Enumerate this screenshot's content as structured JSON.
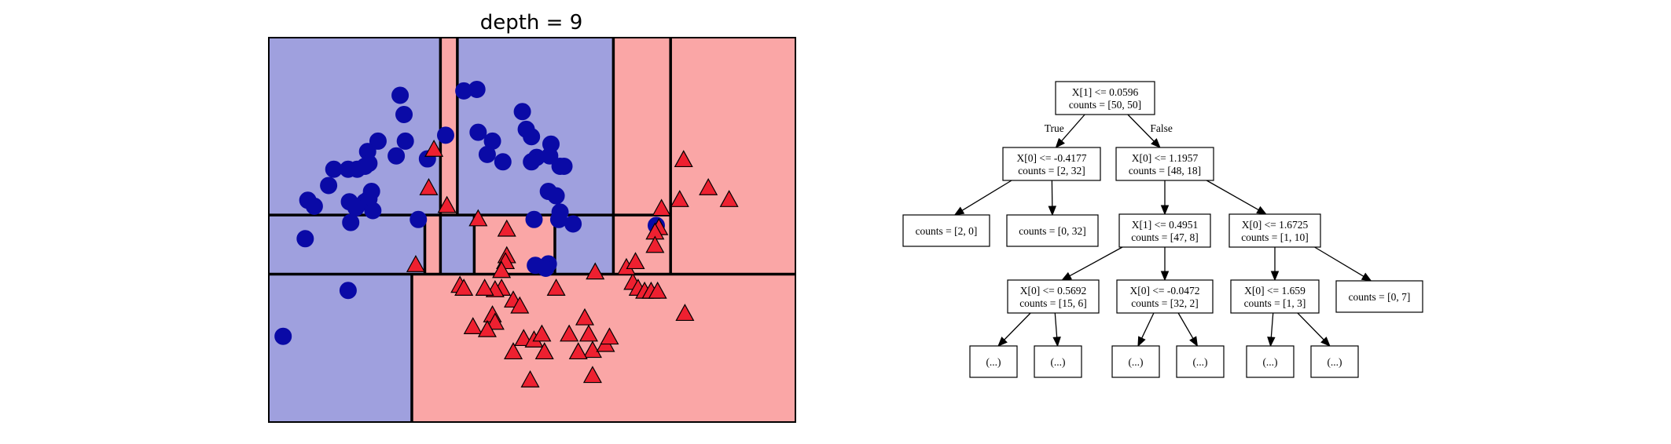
{
  "chart_data": [
    {
      "type": "scatter",
      "title": "depth = 9",
      "xlabel": "",
      "ylabel": "",
      "xlim": [
        -1.6,
        2.45
      ],
      "ylim": [
        -1.0,
        1.6
      ],
      "grid": false,
      "colors": {
        "class0_region": "#9fa0de",
        "class1_region": "#faa6a6",
        "class0_marker": "#0a0aa6",
        "class1_marker": "#ee2030",
        "boundary": "#000000"
      },
      "regions": [
        {
          "class": 0,
          "x": [
            -1.6,
            -0.28
          ],
          "y": [
            0.4,
            1.6
          ]
        },
        {
          "class": 1,
          "x": [
            -0.28,
            -0.15
          ],
          "y": [
            0.4,
            1.6
          ]
        },
        {
          "class": 0,
          "x": [
            -0.15,
            1.05
          ],
          "y": [
            0.4,
            1.6
          ]
        },
        {
          "class": 1,
          "x": [
            1.05,
            1.49
          ],
          "y": [
            0.4,
            1.6
          ]
        },
        {
          "class": 1,
          "x": [
            1.49,
            2.45
          ],
          "y": [
            0.0,
            1.6
          ]
        },
        {
          "class": 0,
          "x": [
            -1.6,
            -0.4
          ],
          "y": [
            0.0,
            0.4
          ]
        },
        {
          "class": 1,
          "x": [
            -0.4,
            -0.28
          ],
          "y": [
            0.0,
            0.4
          ]
        },
        {
          "class": 0,
          "x": [
            -0.28,
            -0.02
          ],
          "y": [
            0.0,
            0.4
          ]
        },
        {
          "class": 1,
          "x": [
            -0.02,
            0.6
          ],
          "y": [
            0.0,
            0.4
          ]
        },
        {
          "class": 0,
          "x": [
            0.6,
            1.05
          ],
          "y": [
            0.0,
            0.4
          ]
        },
        {
          "class": 1,
          "x": [
            1.05,
            1.49
          ],
          "y": [
            0.0,
            0.4
          ]
        },
        {
          "class": 0,
          "x": [
            -1.6,
            -0.5
          ],
          "y": [
            -1.0,
            0.0
          ]
        },
        {
          "class": 1,
          "x": [
            -0.5,
            2.45
          ],
          "y": [
            -1.0,
            0.0
          ]
        }
      ],
      "boundaries": [
        {
          "x": [
            -0.28,
            -0.28
          ],
          "y": [
            0.4,
            1.6
          ]
        },
        {
          "x": [
            -0.15,
            -0.15
          ],
          "y": [
            0.4,
            1.6
          ]
        },
        {
          "x": [
            1.05,
            1.05
          ],
          "y": [
            0.0,
            1.6
          ]
        },
        {
          "x": [
            1.49,
            1.49
          ],
          "y": [
            0.0,
            1.6
          ]
        },
        {
          "x": [
            -1.6,
            1.49
          ],
          "y": [
            0.4,
            0.4
          ]
        },
        {
          "x": [
            -1.6,
            2.45
          ],
          "y": [
            0.0,
            0.0
          ]
        },
        {
          "x": [
            -0.4,
            -0.4
          ],
          "y": [
            0.0,
            0.4
          ]
        },
        {
          "x": [
            -0.28,
            -0.28
          ],
          "y": [
            0.0,
            0.4
          ]
        },
        {
          "x": [
            -0.02,
            -0.02
          ],
          "y": [
            0.0,
            0.4
          ]
        },
        {
          "x": [
            0.6,
            0.6
          ],
          "y": [
            0.0,
            0.4
          ]
        },
        {
          "x": [
            -0.5,
            -0.5
          ],
          "y": [
            -1.0,
            0.0
          ]
        }
      ],
      "series": [
        {
          "marker": "circle",
          "class": 0,
          "points": [
            [
              -0.59,
              1.21
            ],
            [
              -0.56,
              1.08
            ],
            [
              -0.55,
              0.9
            ],
            [
              -0.62,
              0.8
            ],
            [
              -0.76,
              0.9
            ],
            [
              -0.84,
              0.83
            ],
            [
              -0.92,
              0.71
            ],
            [
              -0.86,
              0.73
            ],
            [
              -0.83,
              0.75
            ],
            [
              -0.99,
              0.71
            ],
            [
              -0.81,
              0.56
            ],
            [
              -1.1,
              0.71
            ],
            [
              -1.14,
              0.6
            ],
            [
              -1.3,
              0.5
            ],
            [
              -1.25,
              0.46
            ],
            [
              -0.98,
              0.49
            ],
            [
              -0.83,
              0.51
            ],
            [
              -0.86,
              0.49
            ],
            [
              -0.93,
              0.45
            ],
            [
              -0.8,
              0.43
            ],
            [
              -0.97,
              0.35
            ],
            [
              -0.45,
              0.37
            ],
            [
              -1.32,
              0.24
            ],
            [
              -0.99,
              -0.11
            ],
            [
              -1.49,
              -0.42
            ],
            [
              -0.38,
              0.78
            ],
            [
              -0.24,
              0.94
            ],
            [
              -0.1,
              1.24
            ],
            [
              0.0,
              1.25
            ],
            [
              0.01,
              0.96
            ],
            [
              0.12,
              0.9
            ],
            [
              0.08,
              0.81
            ],
            [
              0.2,
              0.76
            ],
            [
              0.38,
              0.98
            ],
            [
              0.35,
              1.1
            ],
            [
              0.42,
              0.93
            ],
            [
              0.46,
              0.79
            ],
            [
              0.42,
              0.76
            ],
            [
              0.57,
              0.88
            ],
            [
              0.56,
              0.8
            ],
            [
              0.64,
              0.73
            ],
            [
              0.67,
              0.73
            ],
            [
              0.55,
              0.56
            ],
            [
              0.61,
              0.53
            ],
            [
              0.64,
              0.42
            ],
            [
              0.44,
              0.37
            ],
            [
              0.63,
              0.37
            ],
            [
              0.74,
              0.34
            ],
            [
              0.55,
              0.07
            ],
            [
              0.53,
              0.04
            ],
            [
              0.45,
              0.06
            ],
            [
              1.38,
              0.33
            ]
          ]
        },
        {
          "marker": "triangle",
          "class": 1,
          "points": [
            [
              -0.33,
              0.84
            ],
            [
              -0.37,
              0.58
            ],
            [
              -0.47,
              0.06
            ],
            [
              -0.23,
              0.46
            ],
            [
              0.01,
              0.37
            ],
            [
              0.23,
              0.3
            ],
            [
              0.23,
              0.12
            ],
            [
              0.22,
              0.08
            ],
            [
              0.19,
              0.02
            ],
            [
              0.19,
              -0.1
            ],
            [
              -0.13,
              -0.08
            ],
            [
              -0.1,
              -0.1
            ],
            [
              0.14,
              -0.11
            ],
            [
              0.28,
              -0.18
            ],
            [
              0.33,
              -0.22
            ],
            [
              0.06,
              -0.1
            ],
            [
              0.12,
              -0.28
            ],
            [
              0.14,
              -0.33
            ],
            [
              -0.03,
              -0.36
            ],
            [
              0.08,
              -0.38
            ],
            [
              0.36,
              -0.44
            ],
            [
              0.44,
              -0.45
            ],
            [
              0.5,
              -0.41
            ],
            [
              0.52,
              -0.53
            ],
            [
              0.28,
              -0.53
            ],
            [
              0.41,
              -0.72
            ],
            [
              0.61,
              -0.1
            ],
            [
              0.91,
              0.01
            ],
            [
              0.83,
              -0.3
            ],
            [
              0.71,
              -0.41
            ],
            [
              0.86,
              -0.41
            ],
            [
              0.89,
              -0.52
            ],
            [
              0.78,
              -0.53
            ],
            [
              0.89,
              -0.69
            ],
            [
              0.99,
              -0.48
            ],
            [
              1.02,
              -0.43
            ],
            [
              1.2,
              -0.06
            ],
            [
              1.24,
              -0.1
            ],
            [
              1.29,
              -0.12
            ],
            [
              1.34,
              -0.12
            ],
            [
              1.39,
              -0.12
            ],
            [
              1.6,
              -0.27
            ],
            [
              1.15,
              0.04
            ],
            [
              1.22,
              0.08
            ],
            [
              1.4,
              0.31
            ],
            [
              1.37,
              0.28
            ],
            [
              1.37,
              0.19
            ],
            [
              1.42,
              0.44
            ],
            [
              1.56,
              0.5
            ],
            [
              1.59,
              0.77
            ],
            [
              1.78,
              0.58
            ],
            [
              1.94,
              0.5
            ]
          ]
        }
      ]
    },
    {
      "type": "diagram",
      "nodes": [
        {
          "id": "n0",
          "lines": [
            "X[1] <= 0.0596",
            "counts = [50, 50]"
          ]
        },
        {
          "id": "n1",
          "lines": [
            "X[0] <= -0.4177",
            "counts = [2, 32]"
          ]
        },
        {
          "id": "n2",
          "lines": [
            "X[0] <= 1.1957",
            "counts = [48, 18]"
          ]
        },
        {
          "id": "n3",
          "lines": [
            "counts = [2, 0]"
          ]
        },
        {
          "id": "n4",
          "lines": [
            "counts = [0, 32]"
          ]
        },
        {
          "id": "n5",
          "lines": [
            "X[1] <= 0.4951",
            "counts = [47, 8]"
          ]
        },
        {
          "id": "n6",
          "lines": [
            "X[0] <= 1.6725",
            "counts = [1, 10]"
          ]
        },
        {
          "id": "n7",
          "lines": [
            "X[0] <= 0.5692",
            "counts = [15, 6]"
          ]
        },
        {
          "id": "n8",
          "lines": [
            "X[0] <= -0.0472",
            "counts = [32, 2]"
          ]
        },
        {
          "id": "n9",
          "lines": [
            "X[0] <= 1.659",
            "counts = [1, 3]"
          ]
        },
        {
          "id": "n10",
          "lines": [
            "counts = [0, 7]"
          ]
        },
        {
          "id": "n11",
          "lines": [
            "(...)"
          ]
        },
        {
          "id": "n12",
          "lines": [
            "(...)"
          ]
        },
        {
          "id": "n13",
          "lines": [
            "(...)"
          ]
        },
        {
          "id": "n14",
          "lines": [
            "(...)"
          ]
        },
        {
          "id": "n15",
          "lines": [
            "(...)"
          ]
        },
        {
          "id": "n16",
          "lines": [
            "(...)"
          ]
        }
      ],
      "edges": [
        {
          "from": "n0",
          "to": "n1",
          "label": "True"
        },
        {
          "from": "n0",
          "to": "n2",
          "label": "False"
        },
        {
          "from": "n1",
          "to": "n3",
          "label": ""
        },
        {
          "from": "n1",
          "to": "n4",
          "label": ""
        },
        {
          "from": "n2",
          "to": "n5",
          "label": ""
        },
        {
          "from": "n2",
          "to": "n6",
          "label": ""
        },
        {
          "from": "n5",
          "to": "n7",
          "label": ""
        },
        {
          "from": "n5",
          "to": "n8",
          "label": ""
        },
        {
          "from": "n6",
          "to": "n9",
          "label": ""
        },
        {
          "from": "n6",
          "to": "n10",
          "label": ""
        },
        {
          "from": "n7",
          "to": "n11",
          "label": ""
        },
        {
          "from": "n7",
          "to": "n12",
          "label": ""
        },
        {
          "from": "n8",
          "to": "n13",
          "label": ""
        },
        {
          "from": "n8",
          "to": "n14",
          "label": ""
        },
        {
          "from": "n9",
          "to": "n15",
          "label": ""
        },
        {
          "from": "n9",
          "to": "n16",
          "label": ""
        }
      ]
    }
  ]
}
